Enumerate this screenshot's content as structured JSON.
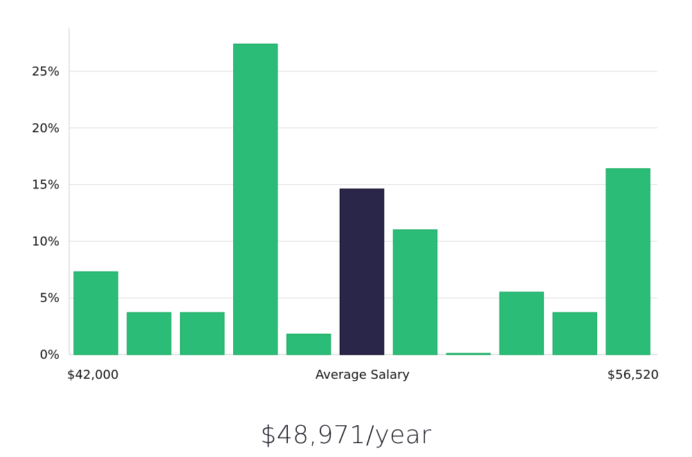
{
  "chart_data": {
    "type": "bar",
    "x_labels": {
      "left": "$42,000",
      "center": "Average Salary",
      "right": "$56,520"
    },
    "y_ticks": [
      "0%",
      "5%",
      "10%",
      "15%",
      "20%",
      "25%"
    ],
    "y_tick_values": [
      0,
      5,
      10,
      15,
      20,
      25
    ],
    "ylim": [
      0,
      27.5
    ],
    "grid": true,
    "values": [
      7.3,
      3.7,
      3.7,
      27.4,
      1.8,
      14.6,
      11.0,
      0.1,
      5.5,
      3.7,
      16.4
    ],
    "highlight_index": 5,
    "colors": {
      "bar": "#2bbd77",
      "highlight": "#29264a",
      "grid": "#dddddd",
      "axis": "#cccccc"
    }
  },
  "salary_label": "$48,971/year"
}
